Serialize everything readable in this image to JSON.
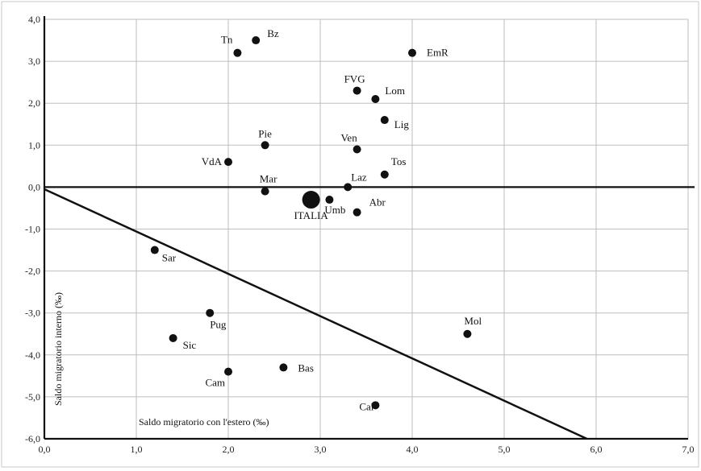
{
  "chart_data": {
    "type": "scatter",
    "title": "",
    "xlabel": "Saldo migratorio con l'estero (‰)",
    "ylabel": "Saldo migratorio interno (‰)",
    "xlim": [
      0,
      7
    ],
    "ylim": [
      -6,
      4
    ],
    "x_ticks": [
      "0,0",
      "1,0",
      "2,0",
      "3,0",
      "4,0",
      "5,0",
      "6,0",
      "7,0"
    ],
    "y_ticks": [
      "4,0",
      "3,0",
      "2,0",
      "1,0",
      "0,0",
      "-1,0",
      "-2,0",
      "-3,0",
      "-4,0",
      "-5,0",
      "-6,0"
    ],
    "grid": true,
    "reference_line": {
      "x": [
        0,
        5.9
      ],
      "y": [
        -0.05,
        -6.0
      ]
    },
    "points": [
      {
        "label": "Tn",
        "x": 2.1,
        "y": 3.2
      },
      {
        "label": "Bz",
        "x": 2.3,
        "y": 3.5
      },
      {
        "label": "EmR",
        "x": 4.0,
        "y": 3.2
      },
      {
        "label": "FVG",
        "x": 3.4,
        "y": 2.3
      },
      {
        "label": "Lom",
        "x": 3.6,
        "y": 2.1
      },
      {
        "label": "Lig",
        "x": 3.7,
        "y": 1.6
      },
      {
        "label": "Pie",
        "x": 2.4,
        "y": 1.0
      },
      {
        "label": "Ven",
        "x": 3.4,
        "y": 0.9
      },
      {
        "label": "VdA",
        "x": 2.0,
        "y": 0.6
      },
      {
        "label": "Tos",
        "x": 3.7,
        "y": 0.3
      },
      {
        "label": "Mar",
        "x": 2.4,
        "y": -0.1
      },
      {
        "label": "Laz",
        "x": 3.3,
        "y": 0.0
      },
      {
        "label": "ITALIA",
        "x": 2.9,
        "y": -0.3,
        "highlight": true
      },
      {
        "label": "Umb",
        "x": 3.1,
        "y": -0.3
      },
      {
        "label": "Abr",
        "x": 3.4,
        "y": -0.6
      },
      {
        "label": "Sar",
        "x": 1.2,
        "y": -1.5
      },
      {
        "label": "Pug",
        "x": 1.8,
        "y": -3.0
      },
      {
        "label": "Sic",
        "x": 1.4,
        "y": -3.6
      },
      {
        "label": "Mol",
        "x": 4.6,
        "y": -3.5
      },
      {
        "label": "Bas",
        "x": 2.6,
        "y": -4.3
      },
      {
        "label": "Cam",
        "x": 2.0,
        "y": -4.4
      },
      {
        "label": "Cal",
        "x": 3.6,
        "y": -5.2
      }
    ]
  }
}
